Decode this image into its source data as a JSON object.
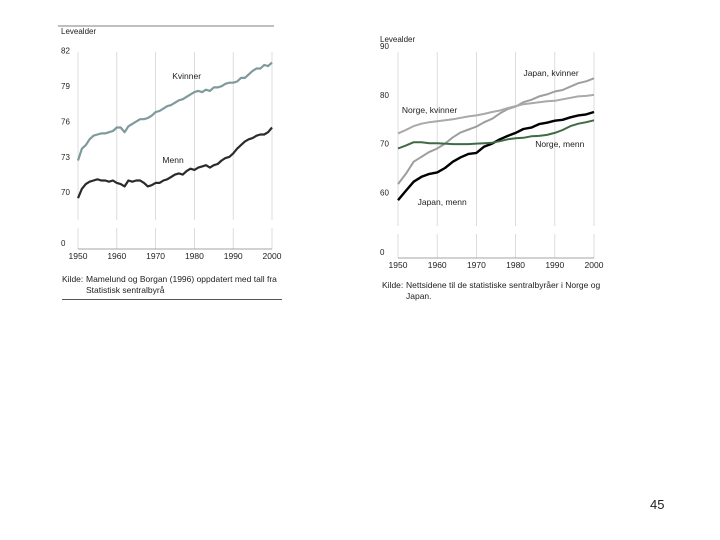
{
  "page_number": "45",
  "colors": {
    "women_norway": "#7e9a9c",
    "men_norway": "#2b2b2b",
    "japan_women": "#9e9e9e",
    "norway_women_grey": "#a9a9a9",
    "japan_men": "#000000",
    "norway_men_green": "#3e6b45"
  },
  "chart_data": [
    {
      "type": "line",
      "ylabel": "Levealder",
      "ytick_labels": [
        "0",
        "70",
        "73",
        "76",
        "79",
        "82"
      ],
      "yticks": [
        0,
        70,
        73,
        76,
        79,
        82
      ],
      "xtick_labels": [
        "1950",
        "1960",
        "1970",
        "1980",
        "1990",
        "2000"
      ],
      "xlim": [
        1950,
        2000
      ],
      "grid": "vertical",
      "axis_break": true,
      "source": {
        "label": "Kilde:",
        "text": "Mamelund og Borgan (1996) oppdatert med tall fra Statistisk sentralbyrå"
      },
      "series": [
        {
          "name": "Kvinner",
          "label": "Kvinner",
          "color": "#7e9a9c",
          "x": [
            1950,
            1951,
            1952,
            1953,
            1954,
            1955,
            1956,
            1957,
            1958,
            1959,
            1960,
            1961,
            1962,
            1963,
            1964,
            1965,
            1966,
            1967,
            1968,
            1969,
            1970,
            1971,
            1972,
            1973,
            1974,
            1975,
            1976,
            1977,
            1978,
            1979,
            1980,
            1981,
            1982,
            1983,
            1984,
            1985,
            1986,
            1987,
            1988,
            1989,
            1990,
            1991,
            1992,
            1993,
            1994,
            1995,
            1996,
            1997,
            1998,
            1999,
            2000
          ],
          "values": [
            73.2,
            74.2,
            74.5,
            75.0,
            75.3,
            75.4,
            75.5,
            75.5,
            75.6,
            75.7,
            76.0,
            76.0,
            75.6,
            76.1,
            76.3,
            76.5,
            76.7,
            76.7,
            76.8,
            77.0,
            77.3,
            77.4,
            77.6,
            77.8,
            77.9,
            78.1,
            78.3,
            78.4,
            78.6,
            78.8,
            79.0,
            79.1,
            79.0,
            79.2,
            79.1,
            79.4,
            79.4,
            79.5,
            79.7,
            79.8,
            79.8,
            79.9,
            80.2,
            80.2,
            80.5,
            80.8,
            81.0,
            81.0,
            81.3,
            81.2,
            81.5
          ]
        },
        {
          "name": "Menn",
          "label": "Menn",
          "color": "#2b2b2b",
          "x": [
            1950,
            1951,
            1952,
            1953,
            1954,
            1955,
            1956,
            1957,
            1958,
            1959,
            1960,
            1961,
            1962,
            1963,
            1964,
            1965,
            1966,
            1967,
            1968,
            1969,
            1970,
            1971,
            1972,
            1973,
            1974,
            1975,
            1976,
            1977,
            1978,
            1979,
            1980,
            1981,
            1982,
            1983,
            1984,
            1985,
            1986,
            1987,
            1988,
            1989,
            1990,
            1991,
            1992,
            1993,
            1994,
            1995,
            1996,
            1997,
            1998,
            1999,
            2000
          ],
          "values": [
            70.0,
            70.8,
            71.2,
            71.4,
            71.5,
            71.6,
            71.5,
            71.5,
            71.4,
            71.5,
            71.3,
            71.2,
            71.0,
            71.5,
            71.4,
            71.5,
            71.5,
            71.3,
            71.0,
            71.1,
            71.3,
            71.3,
            71.5,
            71.6,
            71.8,
            72.0,
            72.1,
            72.0,
            72.3,
            72.5,
            72.4,
            72.6,
            72.7,
            72.8,
            72.6,
            72.8,
            72.9,
            73.2,
            73.4,
            73.5,
            73.8,
            74.2,
            74.5,
            74.8,
            75.0,
            75.1,
            75.3,
            75.4,
            75.4,
            75.6,
            76.0
          ]
        }
      ]
    },
    {
      "type": "line",
      "ylabel": "Levealder",
      "ytick_labels": [
        "0",
        "60",
        "70",
        "80",
        "90"
      ],
      "yticks": [
        0,
        60,
        70,
        80,
        90
      ],
      "xtick_labels": [
        "1950",
        "1960",
        "1970",
        "1980",
        "1990",
        "2000"
      ],
      "xlim": [
        1950,
        2000
      ],
      "grid": "vertical",
      "axis_break": true,
      "source": {
        "label": "Kilde:",
        "text": "Nettsidene til de statistiske sentralbyråer i Norge og Japan."
      },
      "series": [
        {
          "name": "Japan, kvinner",
          "label": "Japan, kvinner",
          "color": "#9e9e9e",
          "x": [
            1950,
            1952,
            1954,
            1956,
            1958,
            1960,
            1962,
            1964,
            1966,
            1968,
            1970,
            1972,
            1974,
            1976,
            1978,
            1980,
            1982,
            1984,
            1986,
            1988,
            1990,
            1992,
            1994,
            1996,
            1998,
            2000
          ],
          "values": [
            62.9,
            65.0,
            67.5,
            68.5,
            69.5,
            70.2,
            71.2,
            72.5,
            73.5,
            74.1,
            74.7,
            75.6,
            76.3,
            77.4,
            78.3,
            78.8,
            79.7,
            80.2,
            80.9,
            81.3,
            81.9,
            82.2,
            82.9,
            83.6,
            84.0,
            84.6
          ]
        },
        {
          "name": "Norge, kvinner",
          "label": "Norge, kvinner",
          "color": "#a9a9a9",
          "x": [
            1950,
            1952,
            1954,
            1956,
            1958,
            1960,
            1962,
            1964,
            1966,
            1968,
            1970,
            1972,
            1974,
            1976,
            1978,
            1980,
            1982,
            1984,
            1986,
            1988,
            1990,
            1992,
            1994,
            1996,
            1998,
            2000
          ],
          "values": [
            73.3,
            74.0,
            74.8,
            75.3,
            75.6,
            75.8,
            76.0,
            76.2,
            76.5,
            76.8,
            77.0,
            77.3,
            77.7,
            78.0,
            78.5,
            78.9,
            79.3,
            79.5,
            79.7,
            79.9,
            80.0,
            80.3,
            80.6,
            80.9,
            81.0,
            81.2
          ]
        },
        {
          "name": "Japan, menn",
          "label": "Japan, menn",
          "color": "#000000",
          "x": [
            1950,
            1952,
            1954,
            1956,
            1958,
            1960,
            1962,
            1964,
            1966,
            1968,
            1970,
            1972,
            1974,
            1976,
            1978,
            1980,
            1982,
            1984,
            1986,
            1988,
            1990,
            1992,
            1994,
            1996,
            1998,
            2000
          ],
          "values": [
            59.6,
            61.5,
            63.4,
            64.4,
            65.0,
            65.3,
            66.2,
            67.5,
            68.4,
            69.1,
            69.3,
            70.6,
            71.2,
            72.1,
            72.8,
            73.4,
            74.2,
            74.5,
            75.2,
            75.5,
            75.9,
            76.1,
            76.6,
            77.0,
            77.2,
            77.7
          ]
        },
        {
          "name": "Norge, menn",
          "label": "Norge, menn",
          "color": "#3e6b45",
          "x": [
            1950,
            1952,
            1954,
            1956,
            1958,
            1960,
            1962,
            1964,
            1966,
            1968,
            1970,
            1972,
            1974,
            1976,
            1978,
            1980,
            1982,
            1984,
            1986,
            1988,
            1990,
            1992,
            1994,
            1996,
            1998,
            2000
          ],
          "values": [
            70.2,
            70.8,
            71.5,
            71.5,
            71.3,
            71.3,
            71.2,
            71.1,
            71.1,
            71.1,
            71.2,
            71.3,
            71.4,
            71.7,
            72.1,
            72.3,
            72.4,
            72.7,
            72.8,
            73.0,
            73.4,
            74.0,
            74.8,
            75.3,
            75.6,
            76.0
          ]
        }
      ]
    }
  ]
}
